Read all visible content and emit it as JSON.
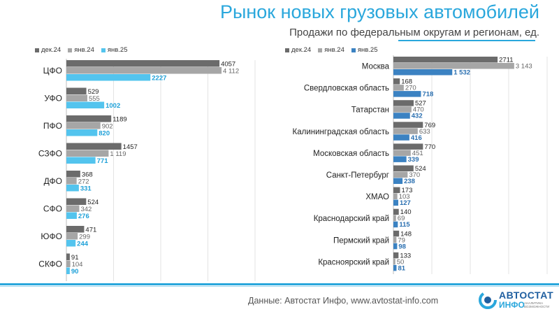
{
  "header": {
    "title": "Рынок новых грузовых автомобилей",
    "subtitle": "Продажи по федеральным округам и регионам, ед."
  },
  "colors": {
    "dec24": "#6b6b6b",
    "jan24": "#a6a6a6",
    "jan25_left": "#53c4ee",
    "jan25_right": "#3b82c2",
    "accent": "#2aa7dc"
  },
  "legend": [
    "дек.24",
    "янв.24",
    "янв.25"
  ],
  "chart_data": [
    {
      "type": "bar",
      "orientation": "horizontal",
      "categories": [
        "ЦФО",
        "УФО",
        "ПФО",
        "СЗФО",
        "ДФО",
        "СФО",
        "ЮФО",
        "СКФО"
      ],
      "series": [
        {
          "name": "дек.24",
          "values": [
            4057,
            529,
            1189,
            1457,
            368,
            524,
            471,
            91
          ],
          "labels": [
            "4057",
            "529",
            "1189",
            "1457",
            "368",
            "524",
            "471",
            "91"
          ]
        },
        {
          "name": "янв.24",
          "values": [
            4112,
            555,
            902,
            1119,
            272,
            342,
            299,
            104
          ],
          "labels": [
            "4 112",
            "555",
            "902",
            "1 119",
            "272",
            "342",
            "299",
            "104"
          ]
        },
        {
          "name": "янв.25",
          "values": [
            2227,
            1002,
            820,
            771,
            331,
            276,
            244,
            90
          ],
          "labels": [
            "2227",
            "1002",
            "820",
            "771",
            "331",
            "276",
            "244",
            "90"
          ]
        }
      ],
      "xlim": [
        0,
        5000
      ],
      "grid": true
    },
    {
      "type": "bar",
      "orientation": "horizontal",
      "categories": [
        "Москва",
        "Свердловская область",
        "Татарстан",
        "Калининградская область",
        "Московская область",
        "Санкт-Петербург",
        "ХМАО",
        "Краснодарский край",
        "Пермский край",
        "Красноярский край"
      ],
      "series": [
        {
          "name": "дек.24",
          "values": [
            2711,
            168,
            527,
            769,
            770,
            524,
            173,
            140,
            148,
            133
          ],
          "labels": [
            "2711",
            "168",
            "527",
            "769",
            "770",
            "524",
            "173",
            "140",
            "148",
            "133"
          ]
        },
        {
          "name": "янв.24",
          "values": [
            3143,
            270,
            470,
            633,
            451,
            370,
            103,
            69,
            79,
            50
          ],
          "labels": [
            "3 143",
            "270",
            "470",
            "633",
            "451",
            "370",
            "103",
            "69",
            "79",
            "50"
          ]
        },
        {
          "name": "янв.25",
          "values": [
            1532,
            718,
            432,
            416,
            339,
            238,
            127,
            115,
            98,
            81
          ],
          "labels": [
            "1 532",
            "718",
            "432",
            "416",
            "339",
            "238",
            "127",
            "115",
            "98",
            "81"
          ]
        }
      ],
      "xlim": [
        0,
        4000
      ],
      "grid": true
    }
  ],
  "footer": {
    "source": "Данные: Автостат Инфо, www.avtostat-info.com",
    "logo_line1": "АВТОСТАТ",
    "logo_line2": "ИНФО",
    "logo_tagline": "АНАЛИТИКА ВОЗМОЖНОСТИ"
  }
}
